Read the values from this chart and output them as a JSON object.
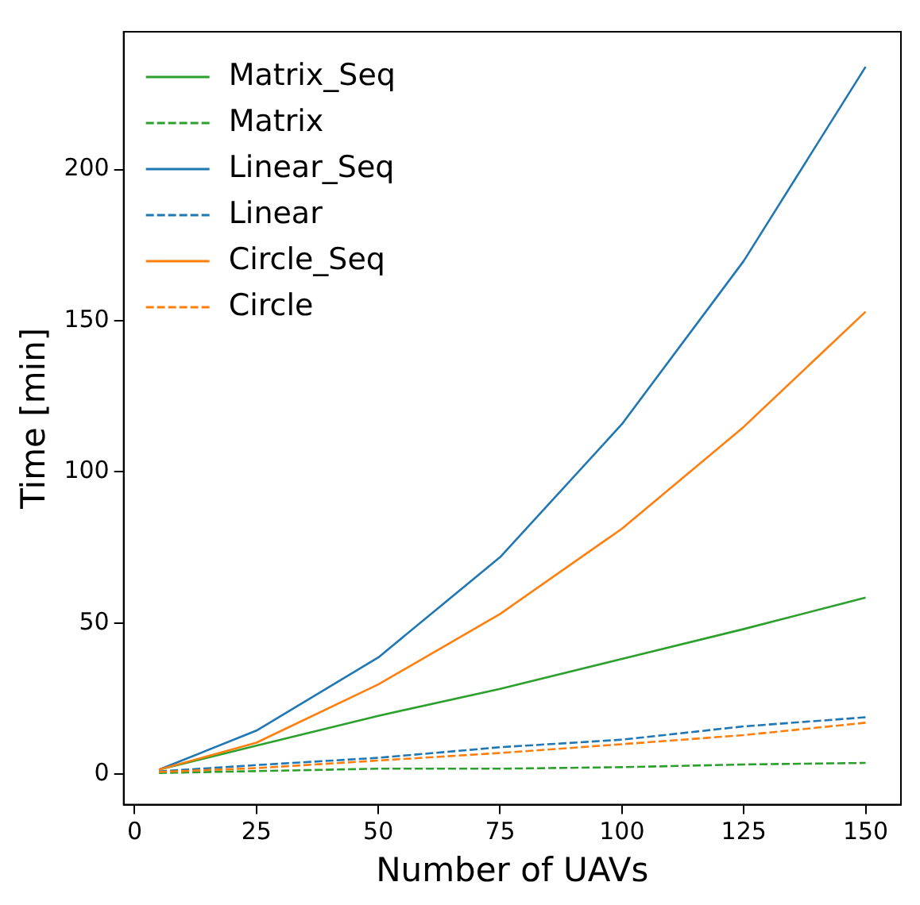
{
  "chart_data": {
    "type": "line",
    "xlabel": "Number of UAVs",
    "ylabel": "Time [min]",
    "x": [
      5,
      25,
      50,
      75,
      100,
      125,
      150
    ],
    "xlim": [
      -2.25,
      157.25
    ],
    "ylim": [
      -10.1,
      245.6
    ],
    "xticks": [
      0,
      25,
      50,
      75,
      100,
      125,
      150
    ],
    "yticks": [
      0,
      50,
      100,
      150,
      200
    ],
    "grid": false,
    "legend": "top left",
    "marker": "none",
    "series": [
      {
        "name": "Matrix_Seq",
        "color": "#2ca02c",
        "line_style": "solid",
        "values": [
          1.5,
          9.4,
          19.3,
          28.2,
          38.1,
          48,
          58.4
        ]
      },
      {
        "name": "Matrix",
        "color": "#2ca02c",
        "line_style": "dashed",
        "values": [
          0.4,
          1,
          1.8,
          1.8,
          2.3,
          3.2,
          3.7
        ]
      },
      {
        "name": "Linear_Seq",
        "color": "#1f77b4",
        "line_style": "solid",
        "values": [
          1.5,
          14.4,
          38.6,
          71.8,
          115.8,
          169.8,
          234
        ]
      },
      {
        "name": "Linear",
        "color": "#1f77b4",
        "line_style": "dashed",
        "values": [
          0.9,
          3,
          5.4,
          8.9,
          11.4,
          15.8,
          18.8
        ]
      },
      {
        "name": "Circle_Seq",
        "color": "#ff7f0e",
        "line_style": "solid",
        "values": [
          1.5,
          10.4,
          29.7,
          53,
          81.2,
          114.9,
          153
        ]
      },
      {
        "name": "Circle",
        "color": "#ff7f0e",
        "line_style": "dashed",
        "values": [
          0.7,
          2,
          4.5,
          7,
          9.9,
          12.9,
          17
        ]
      }
    ]
  }
}
